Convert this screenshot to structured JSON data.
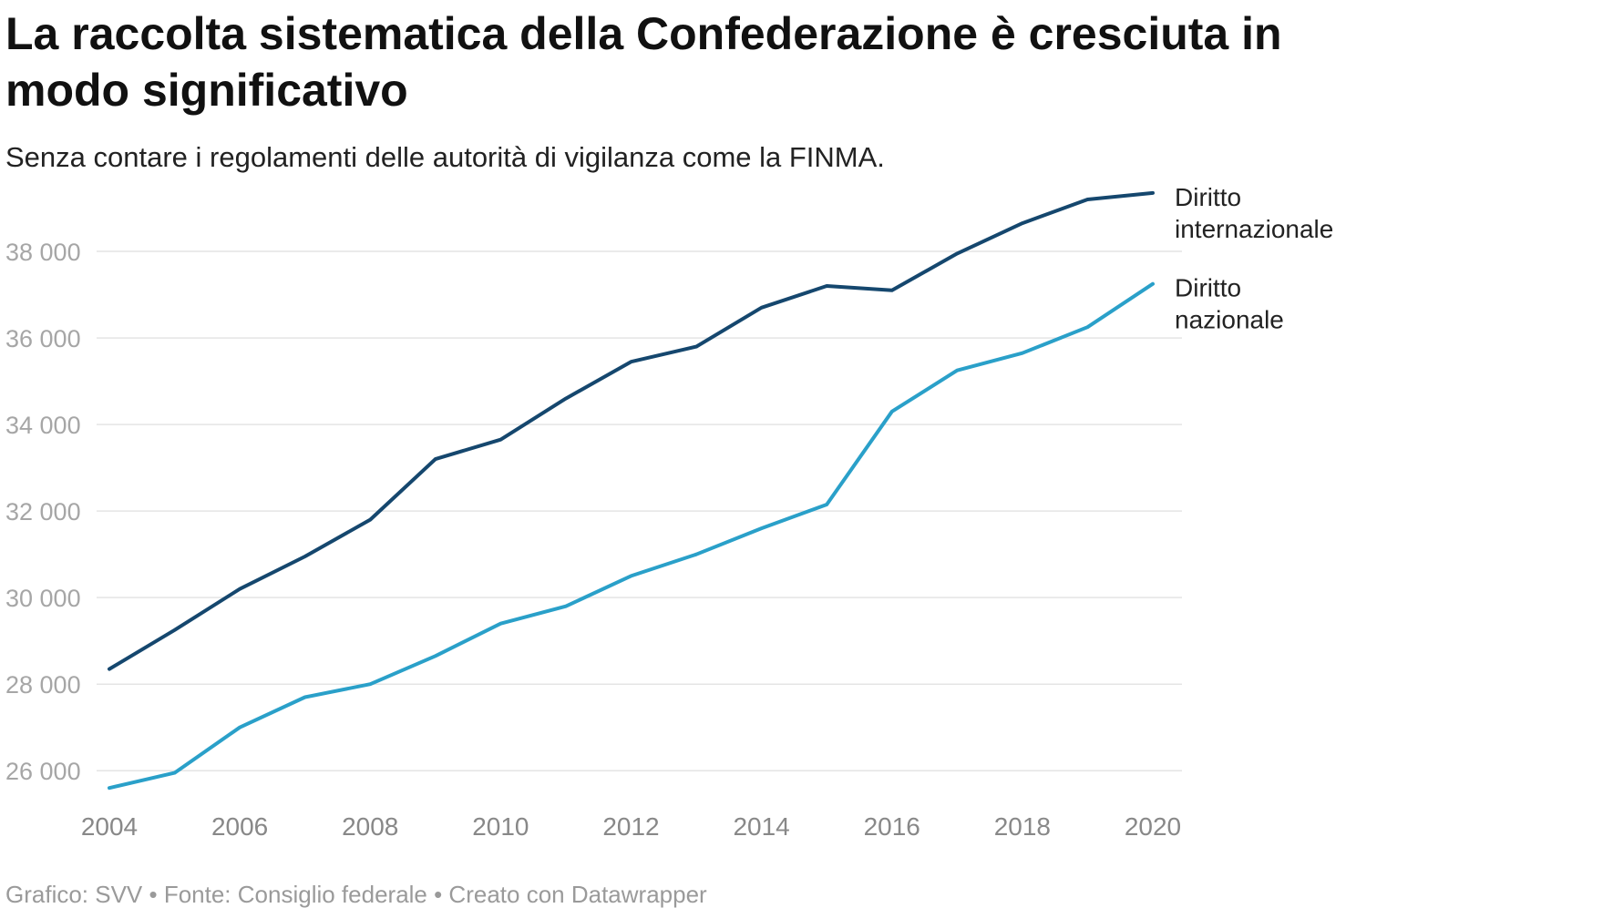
{
  "header": {
    "title": "La raccolta sistematica della Confederazione è cresciuta in modo significativo",
    "subtitle": "Senza contare i regolamenti delle autorità di vigilanza come la FINMA."
  },
  "footer": {
    "credit": "Grafico: SVV • Fonte: Consiglio federale • Creato con Datawrapper"
  },
  "chart_data": {
    "type": "line",
    "title": "La raccolta sistematica della Confederazione è cresciuta in modo significativo",
    "subtitle": "Senza contare i regolamenti delle autorità di vigilanza come la FINMA.",
    "xlabel": "",
    "ylabel": "",
    "x": [
      2004,
      2005,
      2006,
      2007,
      2008,
      2009,
      2010,
      2011,
      2012,
      2013,
      2014,
      2015,
      2016,
      2017,
      2018,
      2019,
      2020
    ],
    "xticks": [
      "2004",
      "2006",
      "2008",
      "2010",
      "2012",
      "2014",
      "2016",
      "2018",
      "2020"
    ],
    "yticks": [
      26000,
      28000,
      30000,
      32000,
      34000,
      36000,
      38000
    ],
    "ytick_labels": [
      "26 000",
      "28 000",
      "30 000",
      "32 000",
      "34 000",
      "36 000",
      "38 000"
    ],
    "ylim": [
      25500,
      39600
    ],
    "xlim": [
      2004,
      2020
    ],
    "grid": true,
    "legend": "direct labels at line ends",
    "series": [
      {
        "name": "Diritto internazionale",
        "label_lines": [
          "Diritto",
          "internazionale"
        ],
        "color": "#15476e",
        "values": [
          28350,
          29250,
          30200,
          30950,
          31800,
          33200,
          33650,
          34600,
          35450,
          35800,
          36700,
          37200,
          37100,
          37950,
          38650,
          39200,
          39350
        ]
      },
      {
        "name": "Diritto nazionale",
        "label_lines": [
          "Diritto",
          "nazionale"
        ],
        "color": "#2aa0c9",
        "values": [
          25600,
          25950,
          27000,
          27700,
          28000,
          28650,
          29400,
          29800,
          30500,
          31000,
          31600,
          32150,
          34300,
          35250,
          35650,
          36250,
          37250
        ]
      }
    ]
  }
}
